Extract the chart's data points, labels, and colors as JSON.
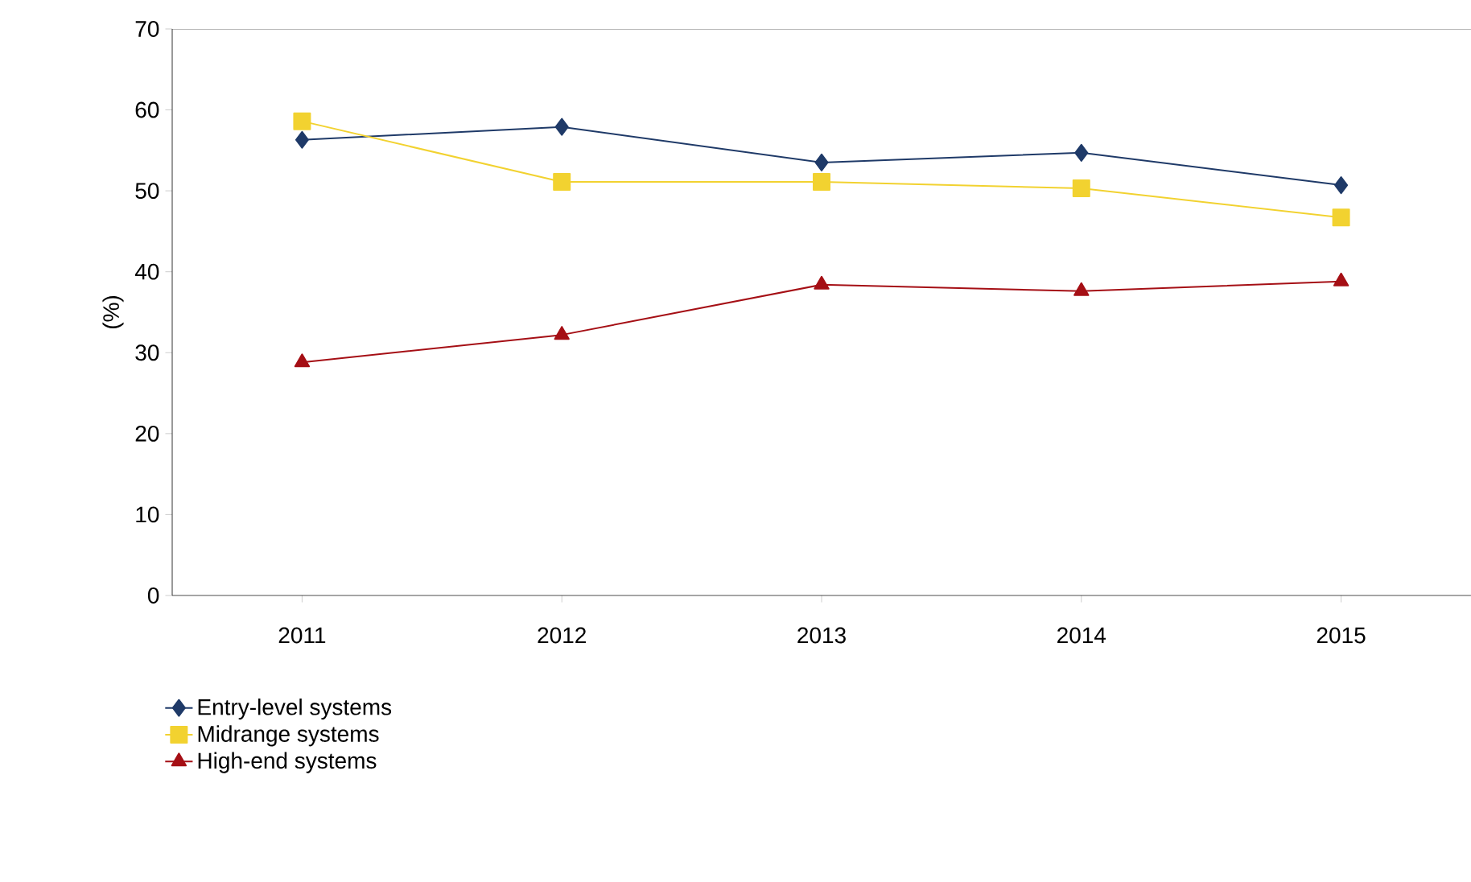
{
  "chart_data": {
    "type": "line",
    "ylabel": "(%)",
    "categories": [
      "2011",
      "2012",
      "2013",
      "2014",
      "2015"
    ],
    "series": [
      {
        "name": "Entry-level systems",
        "color": "#1f3a68",
        "marker": "diamond",
        "values": [
          56.3,
          57.9,
          53.5,
          54.7,
          50.7
        ]
      },
      {
        "name": "Midrange systems",
        "color": "#f2d230",
        "marker": "square",
        "values": [
          58.6,
          51.1,
          51.1,
          50.3,
          46.7
        ]
      },
      {
        "name": "High-end systems",
        "color": "#a50f15",
        "marker": "triangle",
        "values": [
          28.8,
          32.2,
          38.4,
          37.6,
          38.8
        ]
      }
    ],
    "ylim": [
      0,
      70
    ],
    "yticks": [
      0,
      10,
      20,
      30,
      40,
      50,
      60,
      70
    ],
    "grid": false,
    "legend": "bottom left"
  }
}
